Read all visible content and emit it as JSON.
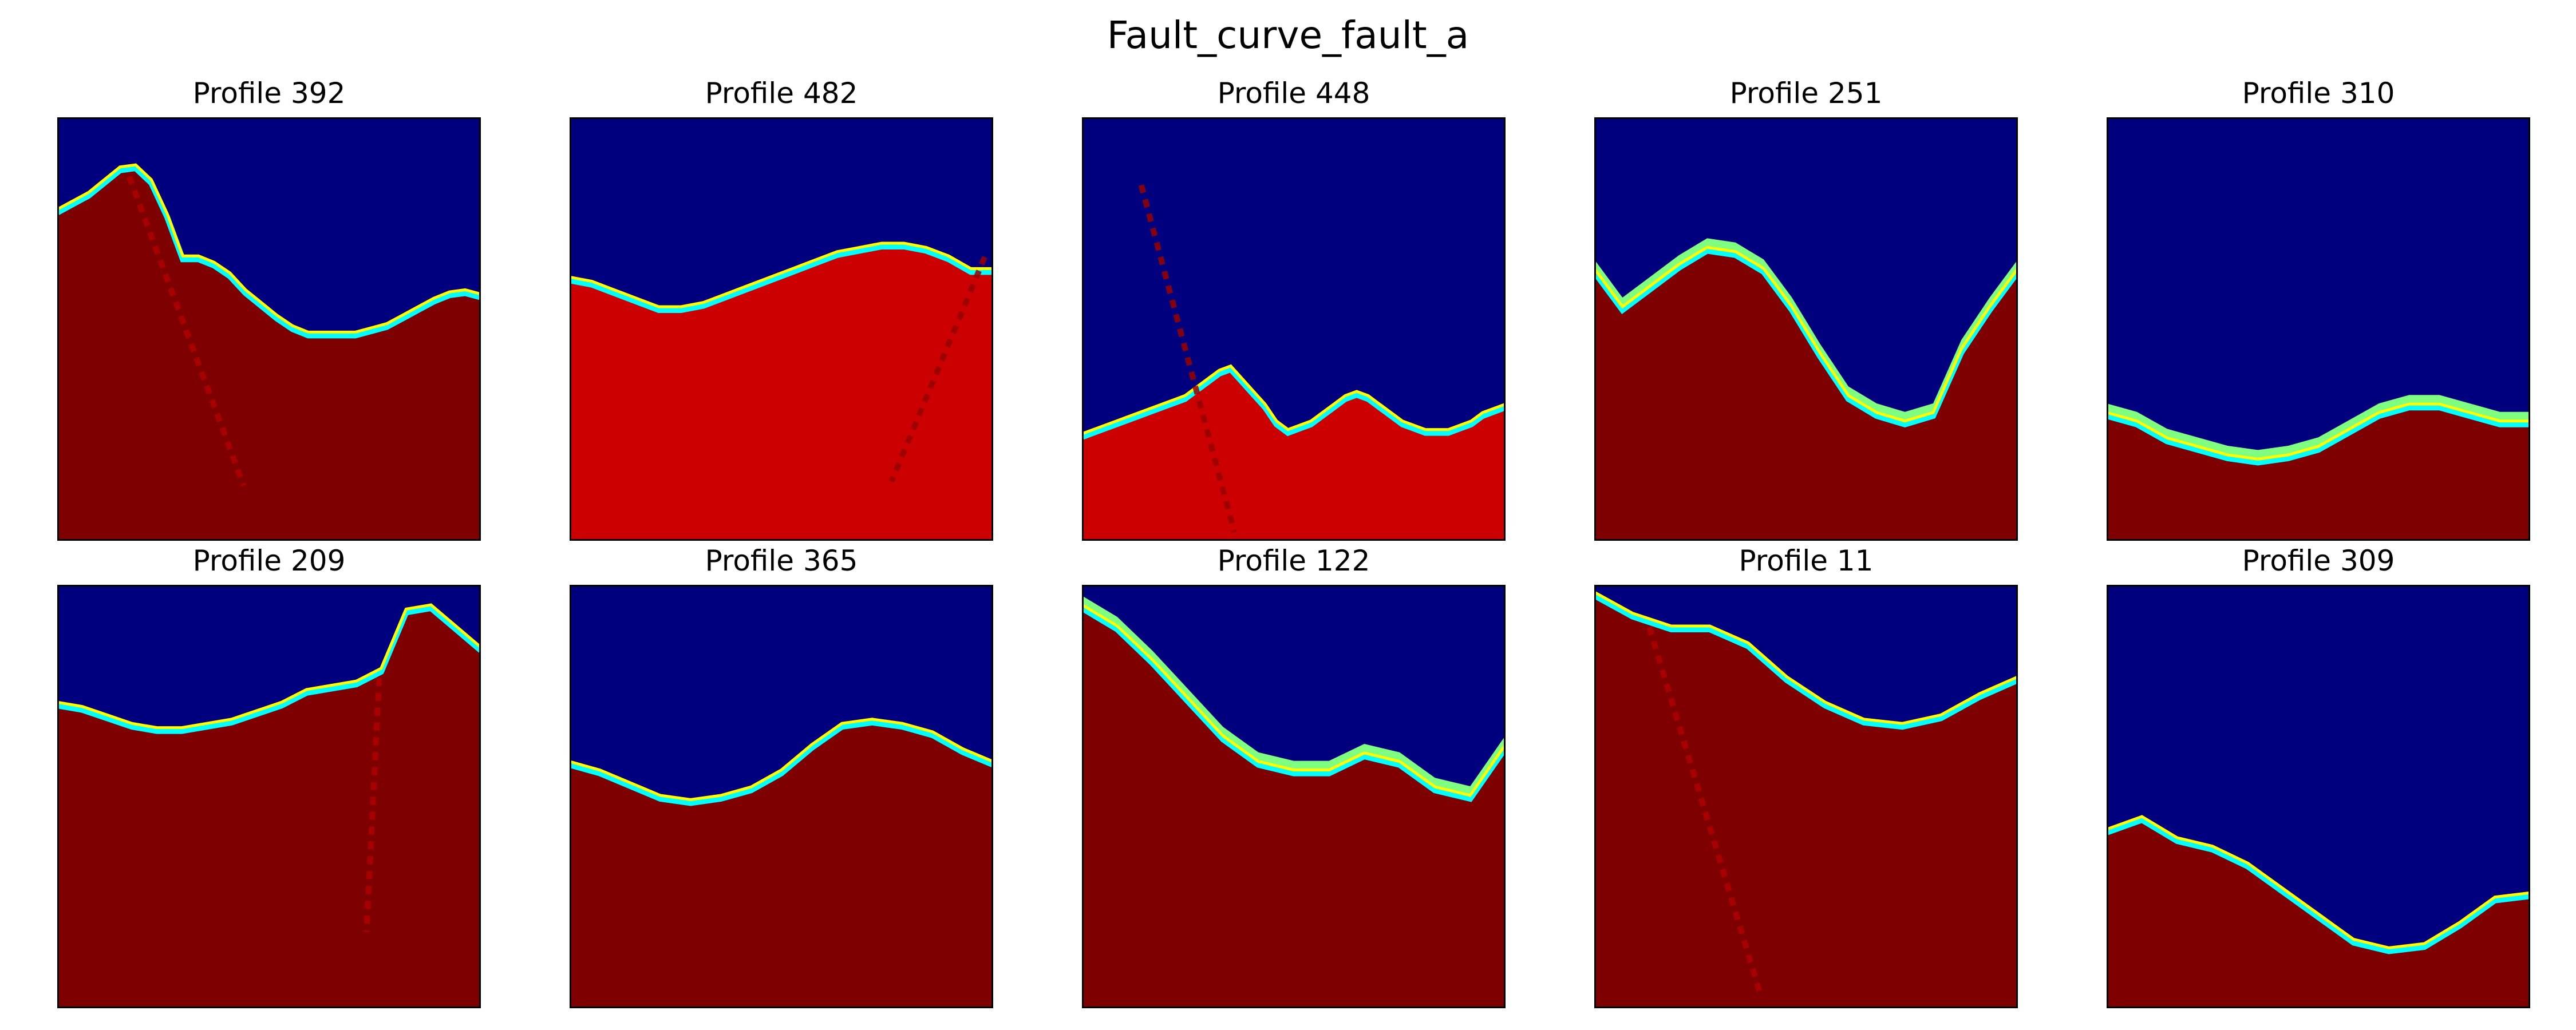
{
  "figure": {
    "title": "Fault_curve_fault_a"
  },
  "colors": {
    "deep_blue": "#00007f",
    "blue": "#0000ff",
    "cyan": "#00ffff",
    "light_green": "#7fff7f",
    "yellow": "#ffff00",
    "red": "#cc0000",
    "dark_red": "#7f0000",
    "frame": "#000000"
  },
  "chart_data": [
    {
      "type": "heatmap",
      "title": "Profile 392",
      "grid": false,
      "axes_ticks": false,
      "colormap": "jet",
      "horizon_depth": [
        0.22,
        0.2,
        0.18,
        0.15,
        0.12,
        0.115,
        0.15,
        0.23,
        0.33,
        0.33,
        0.345,
        0.37,
        0.41,
        0.44,
        0.47,
        0.495,
        0.51,
        0.51,
        0.51,
        0.51,
        0.5,
        0.49,
        0.47,
        0.45,
        0.43,
        0.415,
        0.41,
        0.42
      ],
      "upper_layer": "deep_blue",
      "lower_layer": "dark_red",
      "fault": [
        [
          0.17,
          0.14
        ],
        [
          0.44,
          0.87
        ]
      ]
    },
    {
      "type": "heatmap",
      "title": "Profile 482",
      "grid": false,
      "axes_ticks": false,
      "colormap": "jet",
      "horizon_depth": [
        0.38,
        0.39,
        0.41,
        0.43,
        0.45,
        0.45,
        0.44,
        0.42,
        0.4,
        0.38,
        0.36,
        0.34,
        0.32,
        0.31,
        0.3,
        0.3,
        0.31,
        0.33,
        0.36,
        0.36
      ],
      "upper_layer": "deep_blue",
      "lower_layer": "red",
      "fault": [
        [
          0.98,
          0.33
        ],
        [
          0.76,
          0.86
        ]
      ]
    },
    {
      "type": "heatmap",
      "title": "Profile 448",
      "grid": false,
      "axes_ticks": false,
      "colormap": "jet",
      "horizon_depth": [
        0.75,
        0.74,
        0.73,
        0.72,
        0.71,
        0.7,
        0.69,
        0.68,
        0.67,
        0.66,
        0.64,
        0.62,
        0.6,
        0.59,
        0.62,
        0.65,
        0.68,
        0.72,
        0.74,
        0.73,
        0.72,
        0.7,
        0.68,
        0.66,
        0.65,
        0.66,
        0.68,
        0.7,
        0.72,
        0.73,
        0.74,
        0.74,
        0.74,
        0.73,
        0.72,
        0.7,
        0.69,
        0.68
      ],
      "upper_layer": "deep_blue",
      "lower_layer": "red",
      "fault": [
        [
          0.14,
          0.16
        ],
        [
          0.36,
          0.98
        ]
      ]
    },
    {
      "type": "heatmap",
      "title": "Profile 251",
      "grid": false,
      "axes_ticks": false,
      "colormap": "jet",
      "horizon_depth": [
        0.36,
        0.45,
        0.4,
        0.35,
        0.31,
        0.32,
        0.36,
        0.45,
        0.56,
        0.66,
        0.7,
        0.72,
        0.7,
        0.55,
        0.45,
        0.36
      ],
      "upper_layer": "deep_blue",
      "lower_layer": "dark_red",
      "infill": "light_green"
    },
    {
      "type": "heatmap",
      "title": "Profile 310",
      "grid": false,
      "axes_ticks": false,
      "colormap": "jet",
      "horizon_depth": [
        0.7,
        0.72,
        0.76,
        0.78,
        0.8,
        0.81,
        0.8,
        0.78,
        0.74,
        0.7,
        0.68,
        0.68,
        0.7,
        0.72,
        0.72
      ],
      "upper_layer": "deep_blue",
      "lower_layer": "dark_red",
      "infill": "light_green"
    },
    {
      "type": "heatmap",
      "title": "Profile 209",
      "grid": false,
      "axes_ticks": false,
      "colormap": "jet",
      "horizon_depth": [
        0.28,
        0.29,
        0.31,
        0.33,
        0.34,
        0.34,
        0.33,
        0.32,
        0.3,
        0.28,
        0.25,
        0.24,
        0.23,
        0.2,
        0.06,
        0.05,
        0.1,
        0.15
      ],
      "upper_layer": "deep_blue",
      "lower_layer": "dark_red",
      "fault": [
        [
          0.76,
          0.22
        ],
        [
          0.73,
          0.82
        ]
      ]
    },
    {
      "type": "heatmap",
      "title": "Profile 365",
      "grid": false,
      "axes_ticks": false,
      "colormap": "jet",
      "horizon_depth": [
        0.42,
        0.44,
        0.47,
        0.5,
        0.51,
        0.5,
        0.48,
        0.44,
        0.38,
        0.33,
        0.32,
        0.33,
        0.35,
        0.39,
        0.42
      ],
      "upper_layer": "deep_blue",
      "lower_layer": "dark_red"
    },
    {
      "type": "heatmap",
      "title": "Profile 122",
      "grid": false,
      "axes_ticks": false,
      "colormap": "jet",
      "horizon_depth": [
        0.05,
        0.1,
        0.18,
        0.27,
        0.36,
        0.42,
        0.44,
        0.44,
        0.4,
        0.42,
        0.48,
        0.5,
        0.38
      ],
      "upper_layer": "deep_blue",
      "lower_layer": "dark_red",
      "infill": "light_green"
    },
    {
      "type": "heatmap",
      "title": "Profile 11",
      "grid": false,
      "axes_ticks": false,
      "colormap": "jet",
      "horizon_depth": [
        0.02,
        0.07,
        0.1,
        0.1,
        0.14,
        0.22,
        0.28,
        0.32,
        0.33,
        0.31,
        0.26,
        0.22
      ],
      "upper_layer": "deep_blue",
      "lower_layer": "dark_red",
      "fault": [
        [
          0.13,
          0.1
        ],
        [
          0.39,
          0.96
        ]
      ]
    },
    {
      "type": "heatmap",
      "title": "Profile 309",
      "grid": false,
      "axes_ticks": false,
      "colormap": "jet",
      "horizon_depth": [
        0.58,
        0.55,
        0.6,
        0.62,
        0.66,
        0.72,
        0.78,
        0.84,
        0.86,
        0.85,
        0.8,
        0.74,
        0.73
      ],
      "upper_layer": "deep_blue",
      "lower_layer": "dark_red"
    }
  ]
}
